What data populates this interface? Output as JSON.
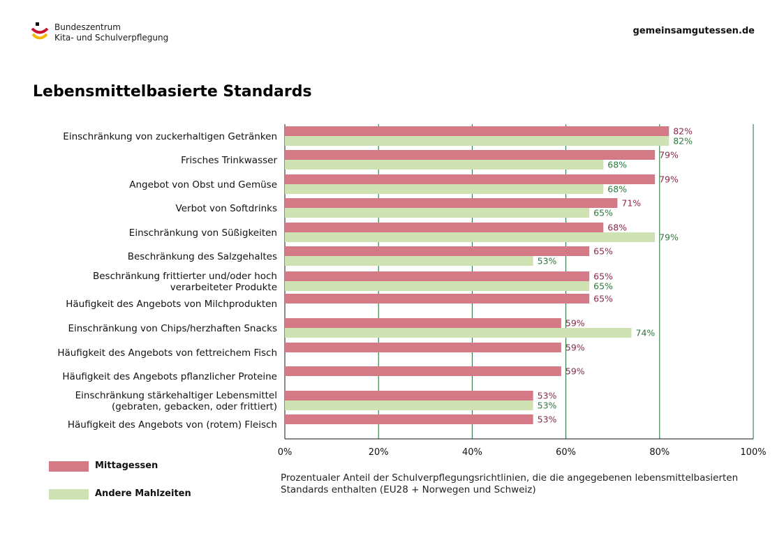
{
  "header": {
    "logo_line1": "Bundeszentrum",
    "logo_line2": "Kita- und Schulverpflegung",
    "website": "gemeinsamgutessen.de"
  },
  "colors": {
    "mittagessen": "#d47a87",
    "andere": "#cfe2b3",
    "mittagessen_label": "#8b2a45",
    "andere_label": "#2c7a3c",
    "gridline": "#1e6b34"
  },
  "chart_data": {
    "type": "bar",
    "orientation": "horizontal",
    "title": "Lebensmittelbasierte Standards",
    "categories": [
      [
        "Einschränkung von zuckerhaltigen Getränken"
      ],
      [
        "Frisches Trinkwasser"
      ],
      [
        "Angebot von Obst und Gemüse"
      ],
      [
        "Verbot von Softdrinks"
      ],
      [
        "Einschränkung von Süßigkeiten"
      ],
      [
        "Beschränkung des Salzgehaltes"
      ],
      [
        "Beschränkung frittierter und/oder hoch",
        "verarbeiteter Produkte"
      ],
      [
        "Häufigkeit des Angebots von Milchprodukten"
      ],
      [
        "Einschränkung von Chips/herzhaften Snacks"
      ],
      [
        "Häufigkeit des Angebots von fettreichem Fisch"
      ],
      [
        "Häufigkeit des Angebots pflanzlicher Proteine"
      ],
      [
        "Einschränkung stärkehaltiger Lebensmittel",
        "(gebraten, gebacken, oder frittiert)"
      ],
      [
        "Häufigkeit des Angebots von (rotem) Fleisch"
      ]
    ],
    "series": [
      {
        "name": "Mittagessen",
        "values": [
          82,
          79,
          79,
          71,
          68,
          65,
          65,
          65,
          59,
          59,
          59,
          53,
          53
        ]
      },
      {
        "name": "Andere Mahlzeiten",
        "values": [
          82,
          68,
          68,
          65,
          79,
          53,
          65,
          null,
          74,
          null,
          null,
          53,
          null
        ]
      }
    ],
    "value_suffix": "%",
    "xlim": [
      0,
      100
    ],
    "xticks": [
      "0%",
      "20%",
      "40%",
      "60%",
      "80%",
      "100%"
    ],
    "grid": true,
    "legend_position": "bottom-left"
  },
  "legend": {
    "mittagessen": "Mittagessen",
    "andere": "Andere Mahlzeiten"
  },
  "caption": "Prozentualer Anteil der Schulverpflegungsrichtlinien, die die angegebenen lebensmittelbasierten Standards enthalten (EU28 + Norwegen und Schweiz)"
}
